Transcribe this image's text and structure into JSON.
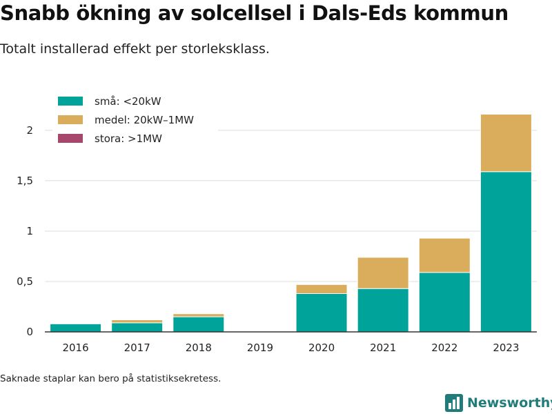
{
  "header": {
    "title": "Snabb ökning av solcellsel i Dals-Eds kommun",
    "subtitle": "Totalt installerad effekt per storleksklass."
  },
  "footer": {
    "note": "Saknade staplar kan bero på statistiksekretess.",
    "brand": "Newsworthy"
  },
  "colors": {
    "small": "#00a39a",
    "medium": "#d9ad5b",
    "large": "#a6476b",
    "grid": "#dcdcdc",
    "axis": "#333333",
    "brand": "#207c78"
  },
  "icons": {
    "brand": "bar-chart-logo-icon"
  },
  "chart_data": {
    "type": "bar",
    "stacked": true,
    "categories": [
      "2016",
      "2017",
      "2018",
      "2019",
      "2020",
      "2021",
      "2022",
      "2023"
    ],
    "series": [
      {
        "name": "små: <20kW",
        "color": "#00a39a",
        "values": [
          0.08,
          0.09,
          0.15,
          0,
          0.38,
          0.43,
          0.59,
          1.59
        ]
      },
      {
        "name": "medel: 20kW–1MW",
        "color": "#d9ad5b",
        "values": [
          0,
          0.03,
          0.03,
          0,
          0.09,
          0.31,
          0.34,
          0.57
        ]
      },
      {
        "name": "stora: >1MW",
        "color": "#a6476b",
        "values": [
          0,
          0,
          0,
          0,
          0,
          0,
          0,
          0
        ]
      }
    ],
    "y_ticks": [
      0,
      0.5,
      1,
      1.5,
      2
    ],
    "y_tick_labels": [
      "0",
      "0,5",
      "1",
      "1,5",
      "2"
    ],
    "ylim": [
      0,
      2.28
    ],
    "grid": true,
    "legend_position": "top-left",
    "title": "Snabb ökning av solcellsel i Dals-Eds kommun",
    "subtitle": "Totalt installerad effekt per storleksklass."
  }
}
